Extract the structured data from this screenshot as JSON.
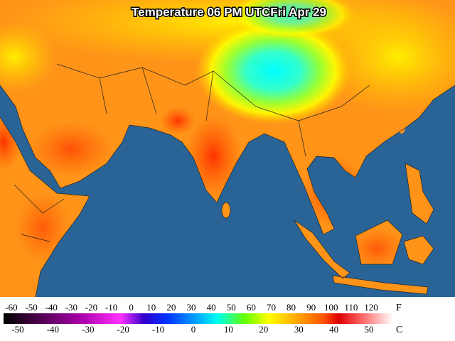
{
  "header": {
    "title": "Temperature 06 PM UTCFri Apr 29"
  },
  "legend": {
    "fahrenheit": {
      "unit": "F",
      "ticks": [
        -60,
        -50,
        -40,
        -30,
        -20,
        -10,
        0,
        10,
        20,
        30,
        40,
        50,
        60,
        70,
        80,
        90,
        100,
        110,
        120
      ]
    },
    "celsius": {
      "unit": "C",
      "ticks": [
        -50,
        -40,
        -30,
        -20,
        -10,
        0,
        10,
        20,
        30,
        40,
        50
      ]
    }
  }
}
